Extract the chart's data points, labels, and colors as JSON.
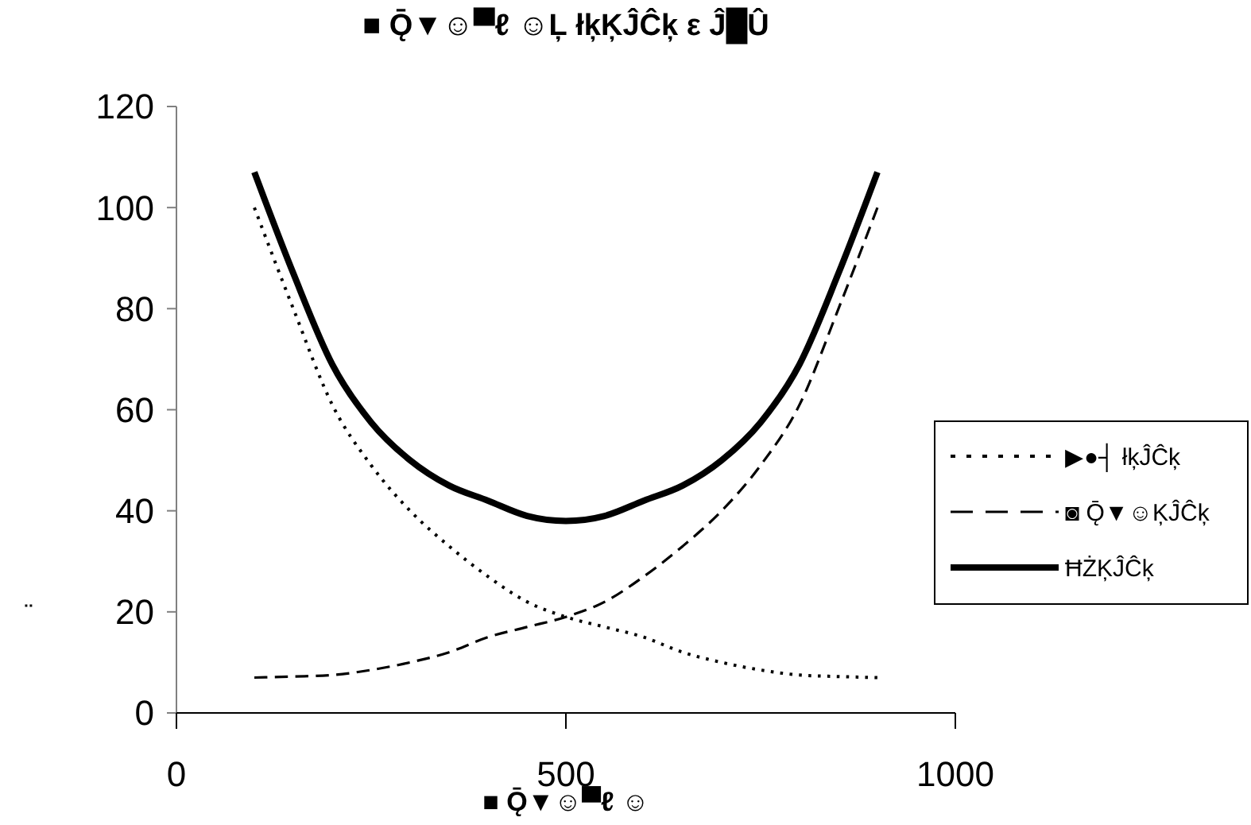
{
  "chart_data": {
    "type": "line",
    "title": "■ Ǭ▼☺▀ℓ ☺Ļ łķĶĴĈķ ε Ĵ█Û",
    "xlabel": "■ Ǭ▼☺▀ℓ ☺",
    "ylabel": "¨",
    "x": [
      100,
      150,
      200,
      250,
      300,
      350,
      400,
      450,
      500,
      550,
      600,
      650,
      700,
      750,
      800,
      850,
      900
    ],
    "series": [
      {
        "name": "▶●┤ łķĴĈķ",
        "color": "#000000",
        "line_style": "dotted",
        "values": [
          100,
          80,
          61,
          49,
          40,
          33,
          27,
          22,
          19,
          17,
          15,
          12,
          10,
          8.5,
          7.5,
          7.2,
          7
        ]
      },
      {
        "name": "◙ Ǭ▼☺ĶĴĈķ",
        "color": "#000000",
        "line_style": "dashed",
        "values": [
          7,
          7.2,
          7.5,
          8.5,
          10,
          12,
          15,
          17,
          19,
          22,
          27,
          33,
          40,
          49,
          61,
          80,
          100
        ]
      },
      {
        "name": "ĦŻĶĴĈķ",
        "color": "#000000",
        "line_style": "solid",
        "values": [
          107,
          87,
          69,
          57.5,
          50,
          45,
          42,
          39,
          38,
          39,
          42,
          45,
          50,
          57.5,
          69,
          87,
          107
        ]
      }
    ],
    "xlim": [
      0,
      1000
    ],
    "xticks": [
      0,
      500,
      1000
    ],
    "ylim": [
      0,
      120
    ],
    "yticks": [
      0,
      20,
      40,
      60,
      80,
      100,
      120
    ],
    "grid": false,
    "legend": "right",
    "marker": "none"
  }
}
